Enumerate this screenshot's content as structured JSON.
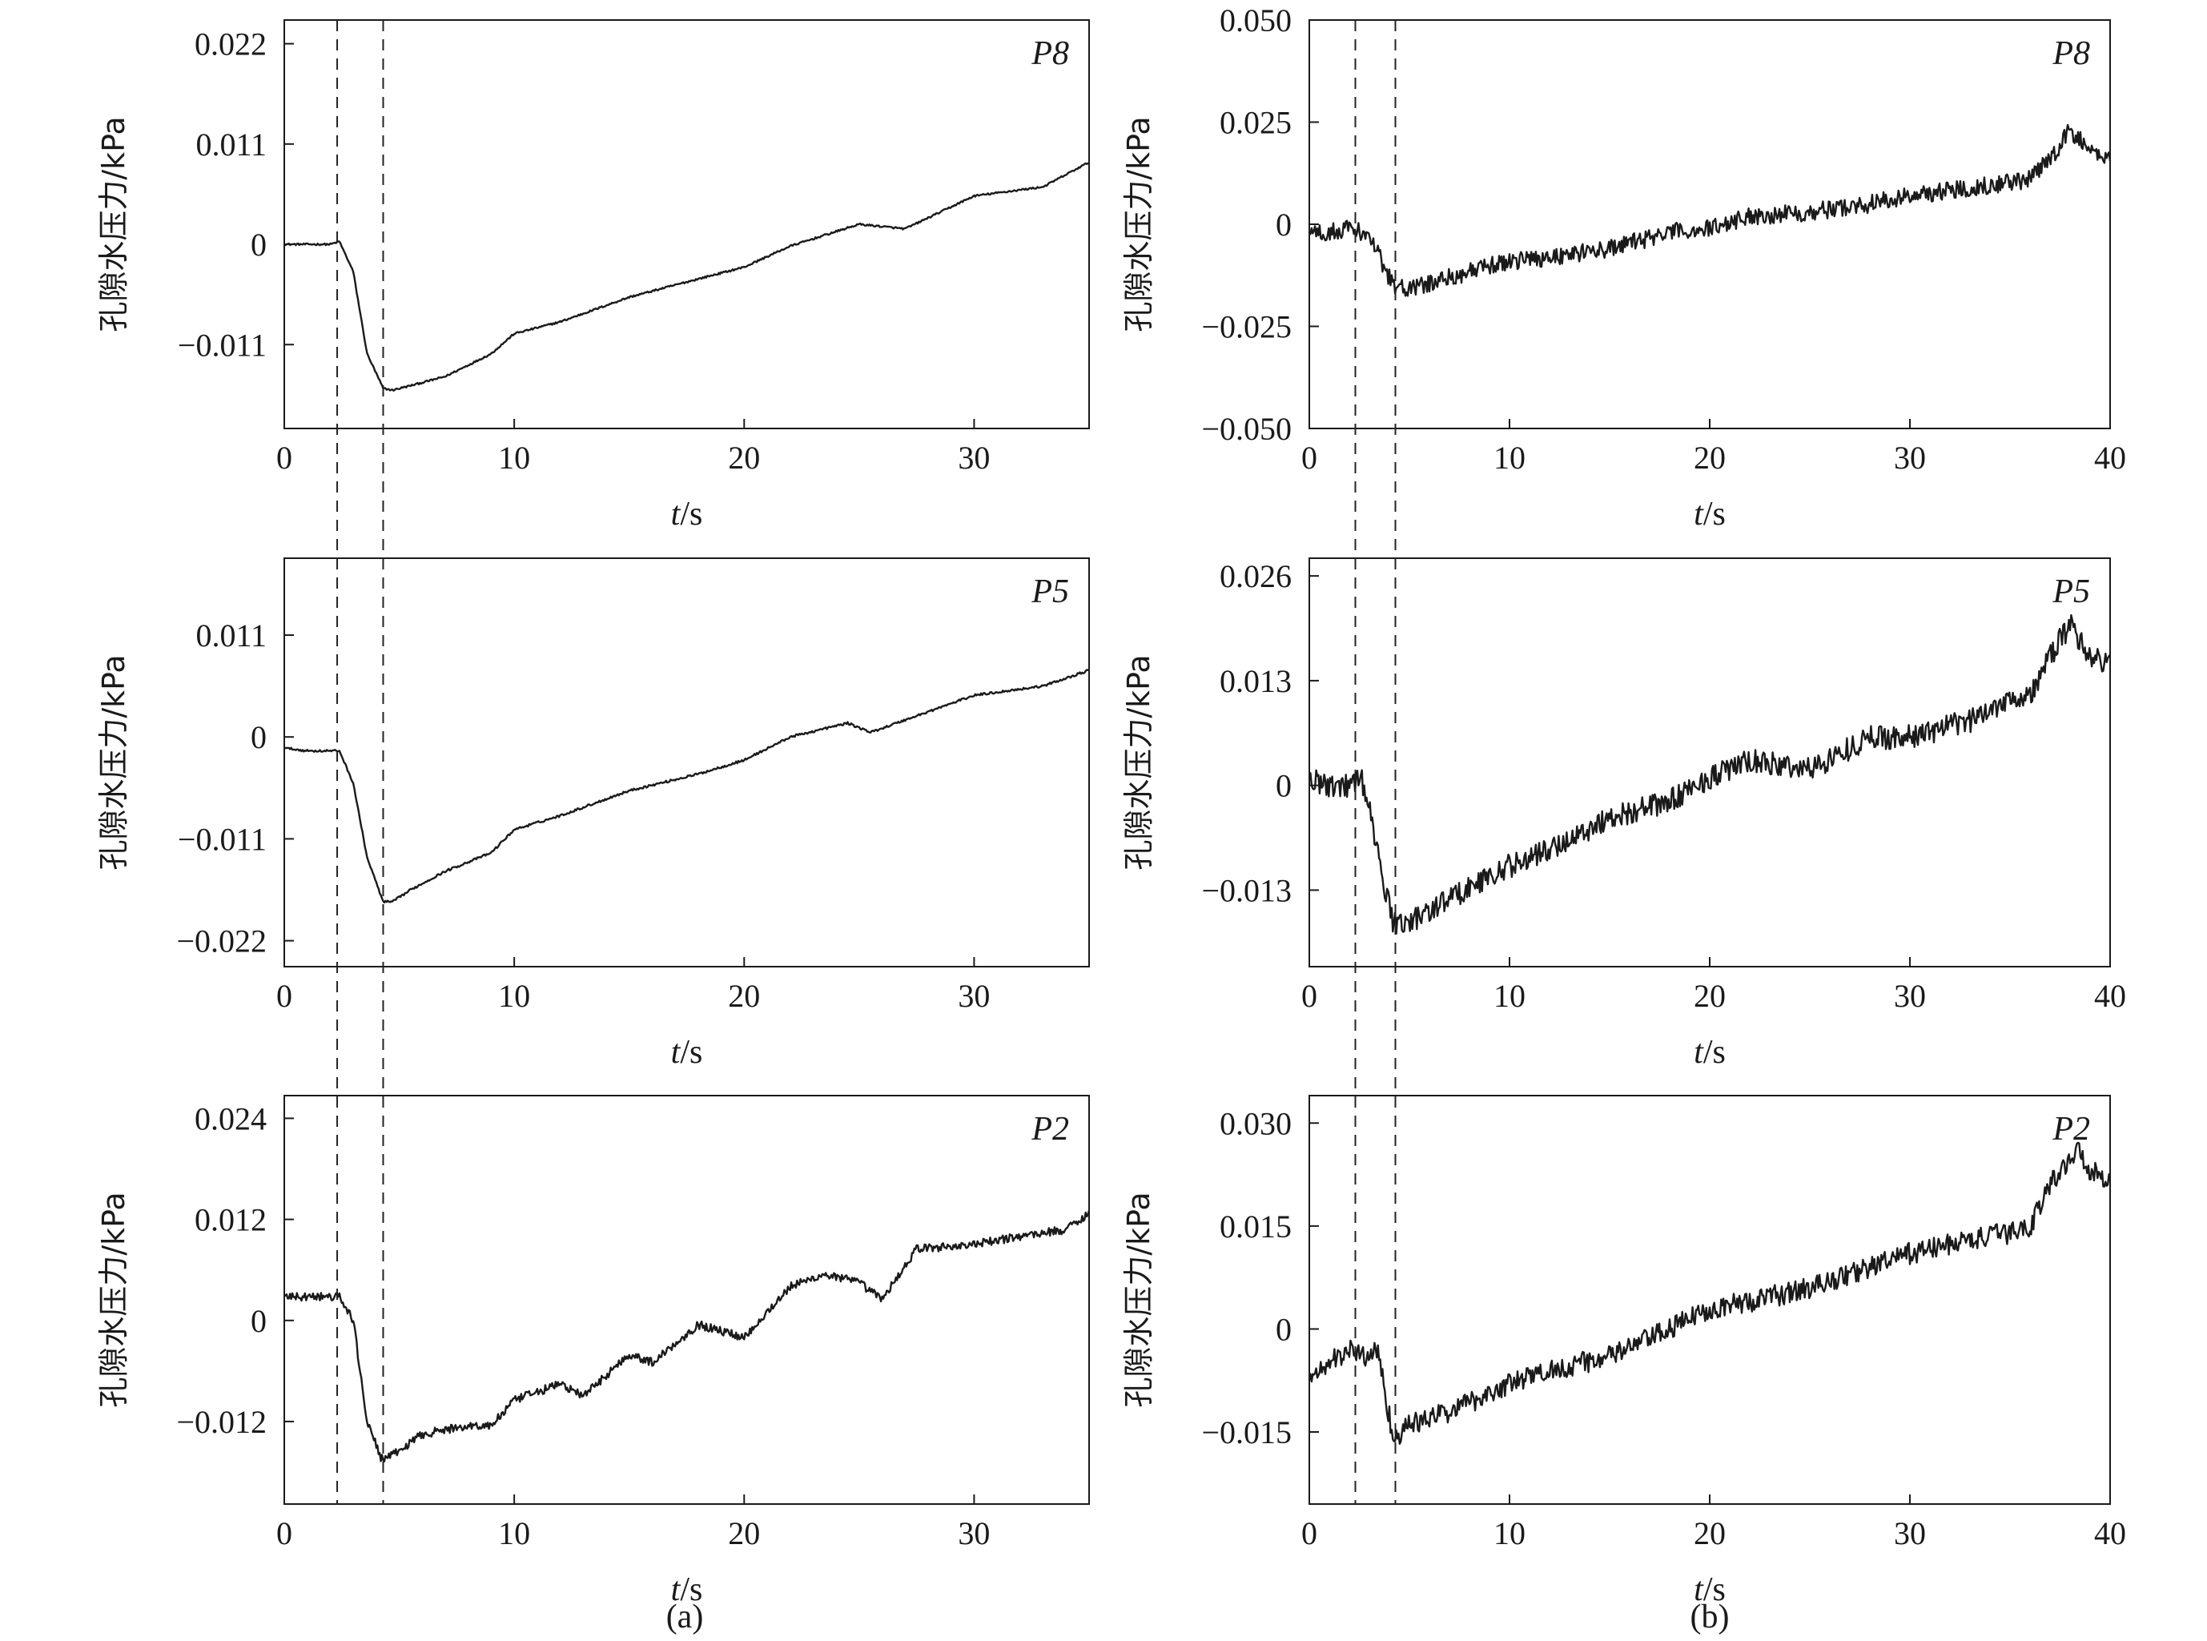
{
  "figure": {
    "captions": [
      "(a)",
      "(b)"
    ],
    "markers": {
      "x": [
        2.3,
        4.3
      ],
      "style": "dashed",
      "color": "#222222"
    }
  },
  "chart_data": [
    {
      "id": "a-p8",
      "type": "line",
      "panel": "(a)",
      "tag": "P8",
      "xlabel": "t/s",
      "ylabel": "孔隙水压力/kPa",
      "xlim": [
        0,
        35
      ],
      "ylim": [
        -0.0202,
        0.0246
      ],
      "xticks": [
        0,
        10,
        20,
        30
      ],
      "xtick_labels": [
        "0",
        "10",
        "20",
        "30"
      ],
      "yticks": [
        0.022,
        0.011,
        0,
        -0.011
      ],
      "ytick_labels": [
        "0.022",
        "0.011",
        "0",
        "−0.011"
      ],
      "grid": false,
      "noise": 0.0001,
      "series": [
        {
          "x": [
            0,
            2,
            2.4,
            3,
            3.6,
            4.3,
            4.7,
            5.5,
            7,
            9,
            10,
            12,
            15,
            18,
            20,
            22,
            25,
            27,
            30,
            33,
            35
          ],
          "y": [
            0,
            0,
            0.0003,
            -0.003,
            -0.012,
            -0.0158,
            -0.016,
            -0.0155,
            -0.0145,
            -0.012,
            -0.0098,
            -0.0085,
            -0.0058,
            -0.0038,
            -0.0025,
            -0.0002,
            0.0022,
            0.0017,
            0.0053,
            0.0063,
            0.009
          ]
        }
      ]
    },
    {
      "id": "a-p5",
      "type": "line",
      "panel": "(a)",
      "tag": "P5",
      "xlabel": "t/s",
      "ylabel": "孔隙水压力/kPa",
      "xlim": [
        0,
        35
      ],
      "ylim": [
        -0.0248,
        0.0193
      ],
      "xticks": [
        0,
        10,
        20,
        30
      ],
      "xtick_labels": [
        "0",
        "10",
        "20",
        "30"
      ],
      "yticks": [
        0.011,
        0,
        -0.011,
        -0.022
      ],
      "ytick_labels": [
        "0.011",
        "0",
        "−0.011",
        "−0.022"
      ],
      "grid": false,
      "noise": 0.00012,
      "series": [
        {
          "x": [
            0,
            1,
            2.4,
            3,
            3.6,
            4.3,
            4.7,
            5.5,
            7,
            9,
            10,
            12,
            15,
            18,
            20,
            22,
            24.5,
            25.5,
            30,
            33,
            35
          ],
          "y": [
            -0.0012,
            -0.0015,
            -0.0015,
            -0.005,
            -0.013,
            -0.0178,
            -0.0178,
            -0.0165,
            -0.0145,
            -0.0125,
            -0.01,
            -0.0085,
            -0.0058,
            -0.004,
            -0.0025,
            0,
            0.0015,
            0.0005,
            0.0045,
            0.0055,
            0.0072
          ]
        }
      ]
    },
    {
      "id": "a-p2",
      "type": "line",
      "panel": "(a)",
      "tag": "P2",
      "xlabel": "t/s",
      "ylabel": "孔隙水压力/kPa",
      "xlim": [
        0,
        35
      ],
      "ylim": [
        -0.0218,
        0.0267
      ],
      "xticks": [
        0,
        10,
        20,
        30
      ],
      "xtick_labels": [
        "0",
        "10",
        "20",
        "30"
      ],
      "yticks": [
        0.024,
        0.012,
        0,
        -0.012
      ],
      "ytick_labels": [
        "0.024",
        "0.012",
        "0",
        "−0.012"
      ],
      "grid": false,
      "noise": 0.0005,
      "series": [
        {
          "x": [
            0,
            2.4,
            3,
            3.6,
            4.2,
            4.6,
            5,
            6,
            7,
            8,
            9,
            10,
            12,
            13,
            15,
            16,
            18,
            20,
            22,
            23.5,
            25,
            26,
            27.5,
            30,
            32,
            34,
            35
          ],
          "y": [
            0.0028,
            0.0028,
            0,
            -0.012,
            -0.0163,
            -0.0162,
            -0.0155,
            -0.0135,
            -0.013,
            -0.0125,
            -0.0125,
            -0.0095,
            -0.0075,
            -0.009,
            -0.004,
            -0.005,
            -0.0005,
            -0.002,
            0.004,
            0.0055,
            0.0045,
            0.0025,
            0.0085,
            0.009,
            0.01,
            0.0108,
            0.0128
          ]
        }
      ]
    },
    {
      "id": "b-p8",
      "type": "line",
      "panel": "(b)",
      "tag": "P8",
      "xlabel": "t/s",
      "ylabel": "孔隙水压力/kPa",
      "xlim": [
        0,
        40
      ],
      "ylim": [
        -0.05,
        0.05
      ],
      "xticks": [
        0,
        10,
        20,
        30,
        40
      ],
      "xtick_labels": [
        "0",
        "10",
        "20",
        "30",
        "40"
      ],
      "yticks": [
        0.05,
        0.025,
        0,
        -0.025,
        -0.05
      ],
      "ytick_labels": [
        "0.050",
        "0.025",
        "0",
        "−0.025",
        "−0.050"
      ],
      "grid": false,
      "noise": 0.0022,
      "series": [
        {
          "x": [
            0,
            1,
            2,
            2.8,
            3.2,
            4.2,
            5,
            7,
            10,
            12,
            15,
            18,
            20,
            22,
            25,
            28,
            30,
            33,
            36,
            37,
            38,
            39,
            40
          ],
          "y": [
            -0.002,
            -0.002,
            -0.001,
            -0.002,
            -0.005,
            -0.015,
            -0.016,
            -0.013,
            -0.009,
            -0.008,
            -0.006,
            -0.002,
            -0.001,
            0.002,
            0.003,
            0.005,
            0.007,
            0.009,
            0.011,
            0.016,
            0.023,
            0.018,
            0.016
          ]
        }
      ]
    },
    {
      "id": "b-p5",
      "type": "line",
      "panel": "(b)",
      "tag": "P5",
      "xlabel": "t/s",
      "ylabel": "孔隙水压力/kPa",
      "xlim": [
        0,
        40
      ],
      "ylim": [
        -0.0225,
        0.0282
      ],
      "xticks": [
        0,
        10,
        20,
        30,
        40
      ],
      "xtick_labels": [
        "0",
        "10",
        "20",
        "30",
        "40"
      ],
      "yticks": [
        0.026,
        0.013,
        0,
        -0.013
      ],
      "ytick_labels": [
        "0.026",
        "0.013",
        "0",
        "−0.013"
      ],
      "grid": false,
      "noise": 0.0015,
      "series": [
        {
          "x": [
            0,
            1,
            2,
            2.6,
            3,
            3.6,
            4.2,
            5,
            7,
            10,
            12,
            15,
            18,
            20,
            22,
            25,
            28,
            30,
            33,
            35,
            36,
            37,
            38,
            38.5,
            39,
            40
          ],
          "y": [
            0.001,
            0,
            0,
            0.001,
            -0.003,
            -0.011,
            -0.017,
            -0.017,
            -0.014,
            -0.01,
            -0.008,
            -0.004,
            -0.002,
            0.001,
            0.003,
            0.002,
            0.006,
            0.006,
            0.008,
            0.011,
            0.011,
            0.016,
            0.02,
            0.018,
            0.016,
            0.015
          ]
        }
      ]
    },
    {
      "id": "b-p2",
      "type": "line",
      "panel": "(b)",
      "tag": "P2",
      "xlabel": "t/s",
      "ylabel": "孔隙水压力/kPa",
      "xlim": [
        0,
        40
      ],
      "ylim": [
        -0.0255,
        0.034
      ],
      "xticks": [
        0,
        10,
        20,
        30,
        40
      ],
      "xtick_labels": [
        "0",
        "10",
        "20",
        "30",
        "40"
      ],
      "yticks": [
        0.03,
        0.015,
        0,
        -0.015
      ],
      "ytick_labels": [
        "0.030",
        "0.015",
        "0",
        "−0.015"
      ],
      "grid": false,
      "noise": 0.0016,
      "series": [
        {
          "x": [
            0,
            1,
            2,
            2.8,
            3.4,
            4.2,
            5,
            7,
            10,
            12,
            15,
            18,
            20,
            22,
            25,
            28,
            30,
            33,
            35,
            36,
            37,
            38,
            38.5,
            39,
            40
          ],
          "y": [
            -0.007,
            -0.005,
            -0.003,
            -0.004,
            -0.003,
            -0.016,
            -0.014,
            -0.012,
            -0.008,
            -0.006,
            -0.004,
            0,
            0.003,
            0.004,
            0.006,
            0.009,
            0.011,
            0.013,
            0.014,
            0.015,
            0.021,
            0.025,
            0.026,
            0.023,
            0.022
          ]
        }
      ]
    }
  ]
}
